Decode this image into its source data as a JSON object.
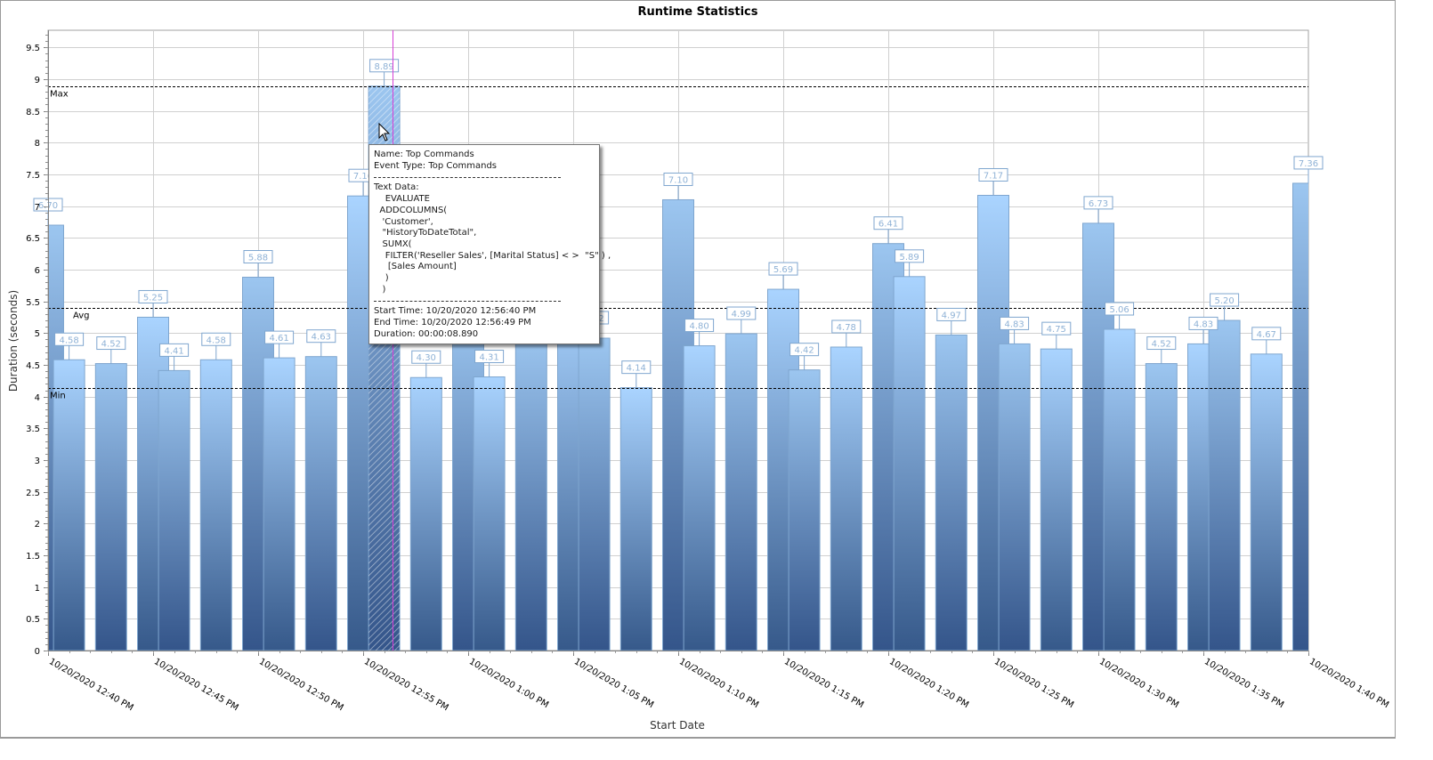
{
  "chart_data": {
    "type": "bar",
    "title": "Runtime Statistics",
    "xlabel": "Start Date",
    "ylabel": "Duration (seconds)",
    "ylim": [
      0,
      9.77
    ],
    "yticks": [
      "0",
      "0.5",
      "1",
      "1.5",
      "2",
      "2.5",
      "3",
      "3.5",
      "4",
      "4.5",
      "5",
      "5.5",
      "6",
      "6.5",
      "7",
      "7.5",
      "8",
      "8.5",
      "9",
      "9.5"
    ],
    "xticks": [
      "10/20/2020 12:40 PM",
      "10/20/2020 12:45 PM",
      "10/20/2020 12:50 PM",
      "10/20/2020 12:55 PM",
      "10/20/2020 1:00 PM",
      "10/20/2020 1:05 PM",
      "10/20/2020 1:10 PM",
      "10/20/2020 1:15 PM",
      "10/20/2020 1:20 PM",
      "10/20/2020 1:25 PM",
      "10/20/2020 1:30 PM",
      "10/20/2020 1:35 PM",
      "10/20/2020 1:40 PM"
    ],
    "x_unit": "minutes after 10/20/2020 12:40 PM",
    "xlim": [
      0,
      60
    ],
    "grid": true,
    "bars": [
      {
        "t": 0,
        "value": 6.7,
        "label": "6.70"
      },
      {
        "t": 1,
        "value": 4.58,
        "label": "4.58"
      },
      {
        "t": 3,
        "value": 4.52,
        "label": "4.52"
      },
      {
        "t": 5,
        "value": 5.25,
        "label": "5.25"
      },
      {
        "t": 6,
        "value": 4.41,
        "label": "4.41"
      },
      {
        "t": 8,
        "value": 4.58,
        "label": "4.58"
      },
      {
        "t": 10,
        "value": 5.88,
        "label": "5.88"
      },
      {
        "t": 11,
        "value": 4.61,
        "label": "4.61"
      },
      {
        "t": 13,
        "value": 4.63,
        "label": "4.63"
      },
      {
        "t": 15,
        "value": 7.16,
        "label": "7.16"
      },
      {
        "t": 16,
        "value": 8.89,
        "label": "8.89",
        "selected": true
      },
      {
        "t": 18,
        "value": 4.3,
        "label": "4.30"
      },
      {
        "t": 20,
        "value": 5.3,
        "label": ""
      },
      {
        "t": 21,
        "value": 4.31,
        "label": "4.31"
      },
      {
        "t": 23,
        "value": 5.0,
        "label": ""
      },
      {
        "t": 25,
        "value": 5.6,
        "label": ""
      },
      {
        "t": 26,
        "value": 4.92,
        "label": "4.92"
      },
      {
        "t": 28,
        "value": 4.14,
        "label": "4.14"
      },
      {
        "t": 30,
        "value": 7.1,
        "label": "7.10"
      },
      {
        "t": 31,
        "value": 4.8,
        "label": "4.80"
      },
      {
        "t": 33,
        "value": 4.99,
        "label": "4.99"
      },
      {
        "t": 35,
        "value": 5.69,
        "label": "5.69"
      },
      {
        "t": 36,
        "value": 4.42,
        "label": "4.42"
      },
      {
        "t": 38,
        "value": 4.78,
        "label": "4.78"
      },
      {
        "t": 40,
        "value": 6.41,
        "label": "6.41"
      },
      {
        "t": 41,
        "value": 5.89,
        "label": "5.89"
      },
      {
        "t": 43,
        "value": 4.97,
        "label": "4.97"
      },
      {
        "t": 45,
        "value": 7.17,
        "label": "7.17"
      },
      {
        "t": 46,
        "value": 4.83,
        "label": "4.83"
      },
      {
        "t": 48,
        "value": 4.75,
        "label": "4.75"
      },
      {
        "t": 50,
        "value": 6.73,
        "label": "6.73"
      },
      {
        "t": 51,
        "value": 5.06,
        "label": "5.06"
      },
      {
        "t": 53,
        "value": 4.52,
        "label": "4.52"
      },
      {
        "t": 55,
        "value": 4.83,
        "label": "4.83"
      },
      {
        "t": 56,
        "value": 5.2,
        "label": "5.20"
      },
      {
        "t": 58,
        "value": 4.67,
        "label": "4.67"
      },
      {
        "t": 60,
        "value": 7.36,
        "label": "7.36"
      }
    ],
    "reference_lines": [
      {
        "name": "Max",
        "value": 8.89
      },
      {
        "name": "Avg",
        "value": 5.39
      },
      {
        "name": "Min",
        "value": 4.14
      }
    ],
    "cursor_line_t": 16.4,
    "colors": {
      "bar_top": "#aad4ff",
      "bar_bottom": "#36598a",
      "bar_border": "#7fa6cf",
      "label_text": "#8fb2d6",
      "cursor_line": "#d63fd6",
      "grid": "#d0d0d0"
    }
  },
  "tooltip": {
    "lines_top": [
      "Name: Top Commands",
      "Event Type: Top Commands"
    ],
    "text_data_heading": "Text Data:",
    "text_data_lines": [
      "    EVALUATE",
      "  ADDCOLUMNS(",
      "   'Customer',",
      "   \"HistoryToDateTotal\",",
      "   SUMX(",
      "    FILTER('Reseller Sales', [Marital Status] < >  \"S\" ) ,",
      "     [Sales Amount]",
      "    )",
      "   )"
    ],
    "lines_bottom": [
      "Start Time: 10/20/2020 12:56:40 PM",
      "End Time: 10/20/2020 12:56:49 PM",
      "Duration: 00:00:08.890"
    ]
  }
}
